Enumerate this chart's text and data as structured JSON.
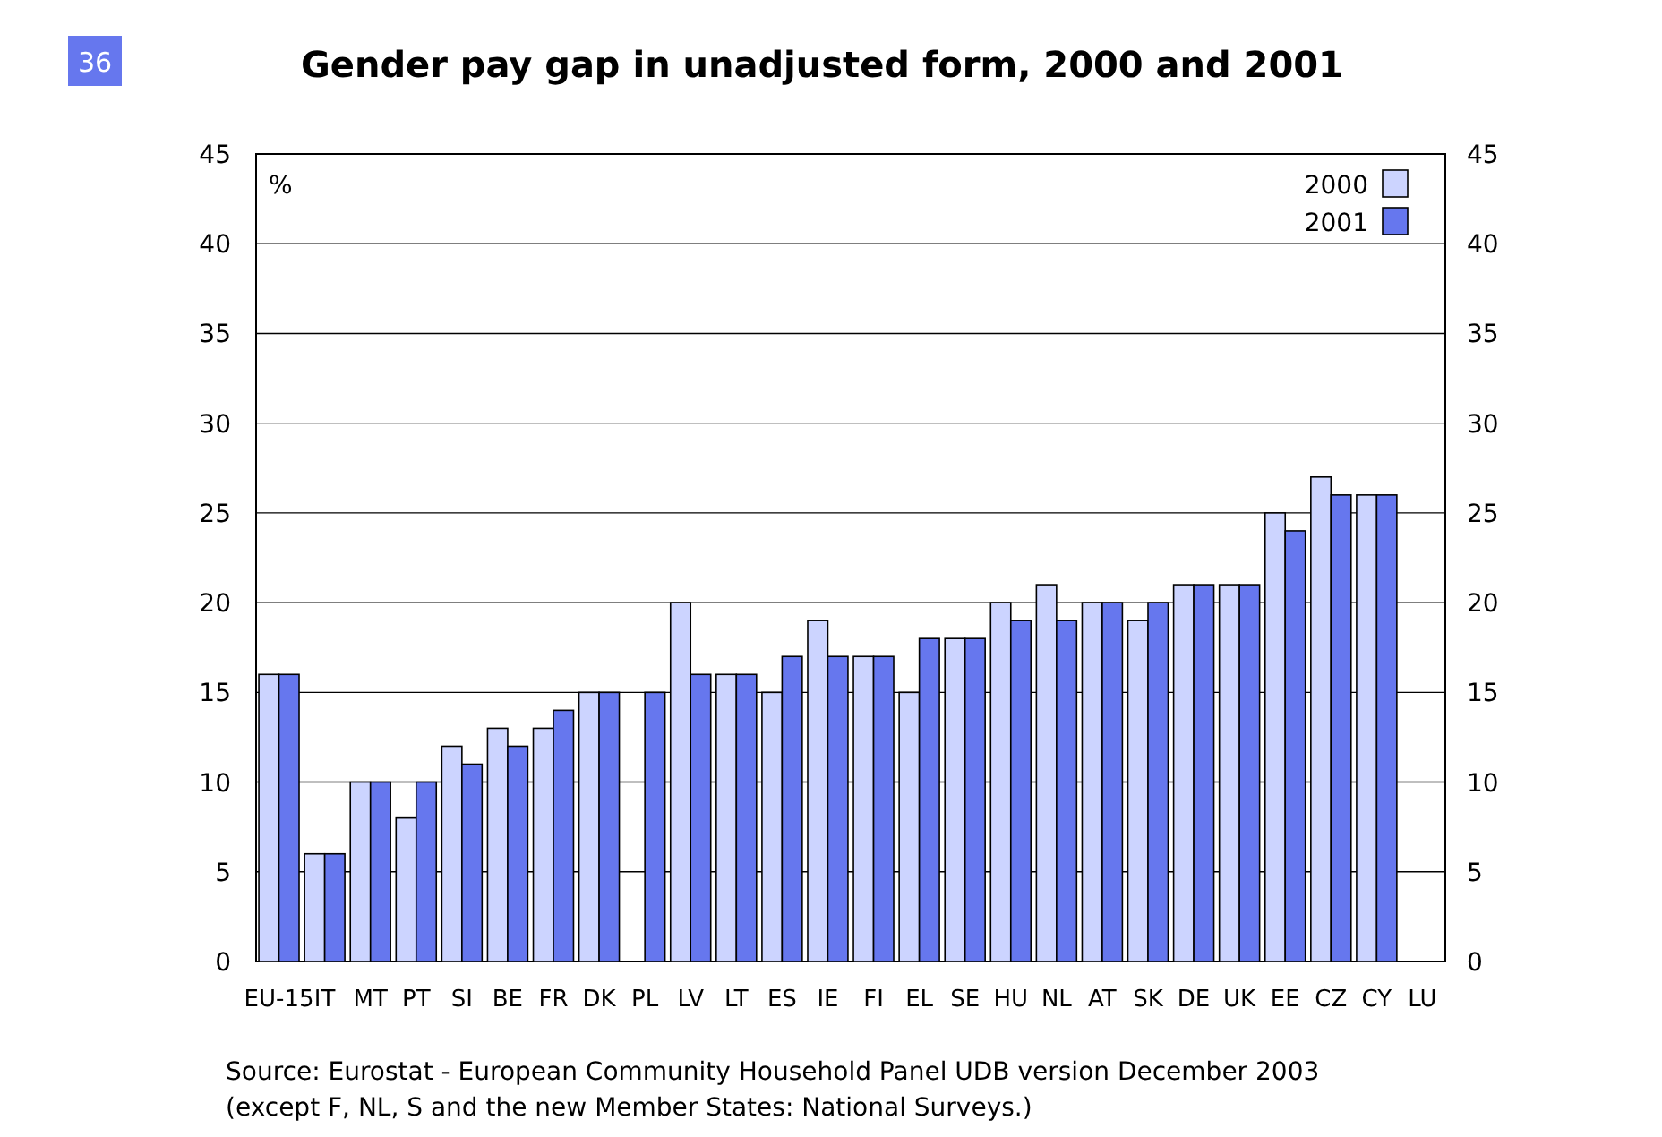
{
  "chart_data": {
    "type": "bar",
    "title": "Gender pay gap in unadjusted form, 2000 and 2001",
    "ylabel": "%",
    "categories": [
      "EU-15",
      "IT",
      "MT",
      "PT",
      "SI",
      "BE",
      "FR",
      "DK",
      "PL",
      "LV",
      "LT",
      "ES",
      "IE",
      "FI",
      "EL",
      "SE",
      "HU",
      "NL",
      "AT",
      "SK",
      "DE",
      "UK",
      "EE",
      "CZ",
      "CY",
      "LU"
    ],
    "series": [
      {
        "name": "2000",
        "color": "#ccd4ff",
        "values": [
          16,
          6,
          10,
          8,
          12,
          13,
          13,
          15,
          null,
          20,
          16,
          15,
          19,
          17,
          15,
          18,
          20,
          21,
          20,
          19,
          21,
          21,
          25,
          27,
          26,
          null
        ]
      },
      {
        "name": "2001",
        "color": "#6677ee",
        "values": [
          16,
          6,
          10,
          10,
          11,
          12,
          14,
          15,
          15,
          16,
          16,
          17,
          17,
          17,
          18,
          18,
          19,
          19,
          20,
          20,
          21,
          21,
          24,
          26,
          26,
          null
        ]
      }
    ],
    "ylim": [
      0,
      45
    ],
    "yticks": [
      0,
      5,
      10,
      15,
      20,
      25,
      30,
      35,
      40,
      45
    ],
    "y2lim": [
      0,
      45
    ],
    "y2ticks": [
      0,
      5,
      10,
      15,
      20,
      25,
      30,
      35,
      40,
      45
    ],
    "grid": "y",
    "legend": "top right",
    "annotations": [
      "36",
      "Source: Eurostat - European Community Household Panel UDB version December 2003",
      "(except F, NL, S and the new Member States: National Surveys.)"
    ]
  }
}
